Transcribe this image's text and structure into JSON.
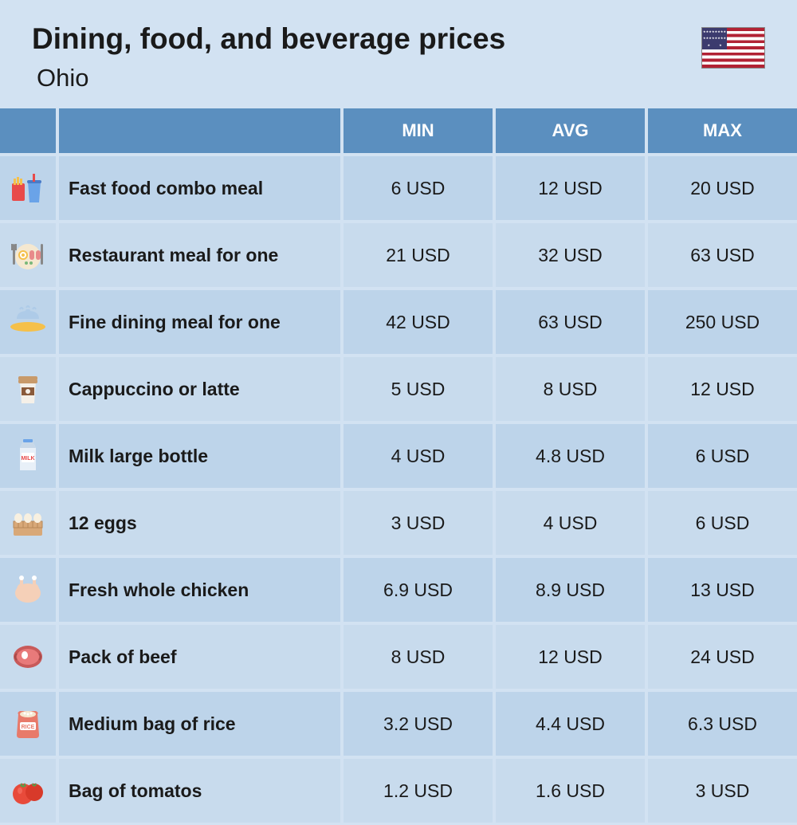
{
  "header": {
    "title": "Dining, food, and beverage prices",
    "subtitle": "Ohio"
  },
  "columns": {
    "min": "MIN",
    "avg": "AVG",
    "max": "MAX"
  },
  "colors": {
    "page_bg": "#d2e2f2",
    "header_cell_bg": "#5b8fbf",
    "header_cell_text": "#ffffff",
    "row_odd_bg": "#bdd4ea",
    "row_even_bg": "#c8dbed",
    "text": "#1a1a1a"
  },
  "rows": [
    {
      "icon": "fast-food",
      "label": "Fast food combo meal",
      "min": "6 USD",
      "avg": "12 USD",
      "max": "20 USD"
    },
    {
      "icon": "restaurant",
      "label": "Restaurant meal for one",
      "min": "21 USD",
      "avg": "32 USD",
      "max": "63 USD"
    },
    {
      "icon": "fine-dining",
      "label": "Fine dining meal for one",
      "min": "42 USD",
      "avg": "63 USD",
      "max": "250 USD"
    },
    {
      "icon": "coffee",
      "label": "Cappuccino or latte",
      "min": "5 USD",
      "avg": "8 USD",
      "max": "12 USD"
    },
    {
      "icon": "milk",
      "label": "Milk large bottle",
      "min": "4 USD",
      "avg": "4.8 USD",
      "max": "6 USD"
    },
    {
      "icon": "eggs",
      "label": "12 eggs",
      "min": "3 USD",
      "avg": "4 USD",
      "max": "6 USD"
    },
    {
      "icon": "chicken",
      "label": "Fresh whole chicken",
      "min": "6.9 USD",
      "avg": "8.9 USD",
      "max": "13 USD"
    },
    {
      "icon": "beef",
      "label": "Pack of beef",
      "min": "8 USD",
      "avg": "12 USD",
      "max": "24 USD"
    },
    {
      "icon": "rice",
      "label": "Medium bag of rice",
      "min": "3.2 USD",
      "avg": "4.4 USD",
      "max": "6.3 USD"
    },
    {
      "icon": "tomatoes",
      "label": "Bag of tomatos",
      "min": "1.2 USD",
      "avg": "1.6 USD",
      "max": "3 USD"
    }
  ]
}
